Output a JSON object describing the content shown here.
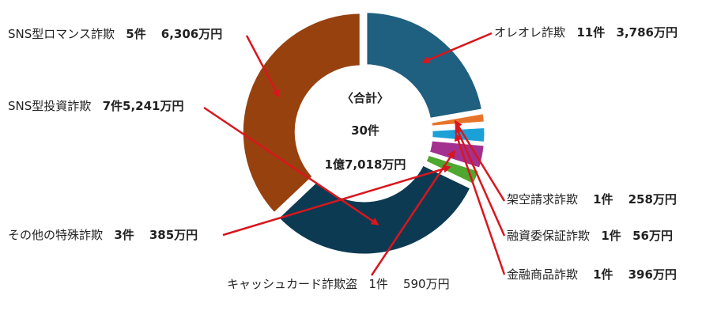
{
  "chart_data": {
    "type": "pie",
    "donut": true,
    "center": {
      "title": "〈合計〉",
      "count": "30件",
      "amount": "1億7,018万円"
    },
    "slices": [
      {
        "name": "オレオレ詐欺",
        "count_label": "11件",
        "amount_label": "3,786万円",
        "value": 3786,
        "color": "#1f5f7f"
      },
      {
        "name": "架空請求詐欺",
        "count_label": "1件",
        "amount_label": "258万円",
        "value": 258,
        "color": "#e8742a"
      },
      {
        "name": "融資委保証詐欺",
        "count_label": "1件",
        "amount_label": "56万円",
        "value": 56,
        "color": "#1e6b35"
      },
      {
        "name": "金融商品詐欺",
        "count_label": "1件",
        "amount_label": "396万円",
        "value": 396,
        "color": "#1ca0d8"
      },
      {
        "name": "キャッシュカード詐欺盗",
        "count_label": "1件",
        "amount_label": "590万円",
        "value": 590,
        "color": "#a3318f"
      },
      {
        "name": "その他の特殊詐欺",
        "count_label": "3件",
        "amount_label": "385万円",
        "value": 385,
        "color": "#4ea72e"
      },
      {
        "name": "SNS型投資詐欺",
        "count_label": "7件",
        "amount_label": "5,241万円",
        "value": 5241,
        "color": "#0c3a52"
      },
      {
        "name": "SNS型ロマンス詐欺",
        "count_label": "5件",
        "amount_label": "6,306万円",
        "value": 6306,
        "color": "#97410f"
      }
    ]
  }
}
